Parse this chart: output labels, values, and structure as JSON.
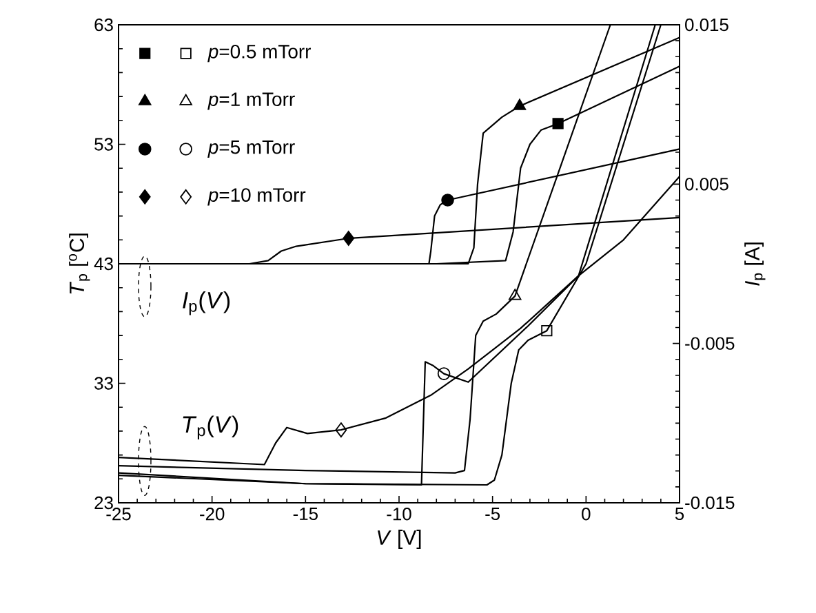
{
  "chart_data": {
    "type": "line",
    "xlabel": "*V* [V]",
    "ylabel": "*T*$_{p}$ [$^{o}$C]",
    "y2label": "*I*$_{p}$ [A]",
    "xlim": [
      -25,
      5
    ],
    "xticks": [
      -25,
      -20,
      -15,
      -10,
      -5,
      0,
      5
    ],
    "ylim": [
      23,
      63
    ],
    "yticks": [
      23,
      33,
      43,
      53,
      63
    ],
    "y2lim": [
      -0.015,
      0.015
    ],
    "y2ticks": [
      -0.015,
      -0.005,
      0.005,
      0.015
    ],
    "legend": "top left",
    "marker": "none",
    "line_style": "solid",
    "annotations": [
      "*I*$_{p}$(*V*)",
      "*T*$_{p}$(*V*)"
    ],
    "series": [
      {
        "axis": "y2",
        "color": "#000000",
        "x": [
          -25,
          -15,
          -8,
          -4.3,
          -3.9,
          -3.5,
          -3.0,
          -2.4,
          -1.5,
          5
        ],
        "values": [
          0,
          0,
          0,
          0.0002,
          0.002,
          0.006,
          0.0075,
          0.0084,
          0.0088,
          0.0124
        ]
      },
      {
        "axis": "y2",
        "color": "#000000",
        "x": [
          -25,
          -15,
          -6.3,
          -6.0,
          -5.8,
          -5.5,
          -4.5,
          -3.55,
          5
        ],
        "values": [
          0,
          0,
          0,
          0.001,
          0.005,
          0.0082,
          0.0092,
          0.0099,
          0.0142
        ]
      },
      {
        "axis": "y2",
        "color": "#000000",
        "x": [
          -25,
          -15,
          -8.4,
          -8.3,
          -8.1,
          -7.8,
          -7.4,
          5
        ],
        "values": [
          0,
          0,
          0,
          0.0008,
          0.003,
          0.0037,
          0.004,
          0.0072
        ]
      },
      {
        "axis": "y2",
        "color": "#000000",
        "x": [
          -25,
          -18,
          -17,
          -16.3,
          -15.5,
          -12.7,
          5
        ],
        "values": [
          0,
          0,
          0.0002,
          0.0008,
          0.0011,
          0.0016,
          0.0029
        ]
      },
      {
        "axis": "y",
        "color": "#000000",
        "x": [
          -25,
          -15,
          -5.3,
          -4.9,
          -4.5,
          -4.0,
          -3.6,
          -3.1,
          -2.1,
          0,
          4.0
        ],
        "values": [
          25.3,
          24.6,
          24.5,
          24.9,
          27,
          33,
          35.8,
          36.6,
          37.4,
          43,
          63
        ]
      },
      {
        "axis": "y",
        "color": "#000000",
        "x": [
          -25,
          -15,
          -7,
          -6.5,
          -6.2,
          -5.9,
          -5.5,
          -4.8,
          -3.8,
          1.3
        ],
        "values": [
          26.1,
          25.7,
          25.5,
          25.7,
          30,
          37,
          38.2,
          38.8,
          40.3,
          63
        ]
      },
      {
        "axis": "y",
        "color": "#000000",
        "x": [
          -25,
          -15,
          -8.8,
          -8.6,
          -8.2,
          -7.6,
          -6.3,
          -3.1,
          -0.4,
          3.7
        ],
        "values": [
          25.5,
          24.6,
          24.5,
          34.8,
          34.5,
          33.8,
          33.1,
          37.8,
          42,
          63
        ]
      },
      {
        "axis": "y",
        "color": "#000000",
        "x": [
          -25,
          -17.2,
          -16.6,
          -16.0,
          -14.9,
          -13.1,
          -10.7,
          -8.3,
          -6.3,
          -3.5,
          -0.4,
          2,
          5
        ],
        "values": [
          26.8,
          26.2,
          28,
          29.3,
          28.8,
          29.1,
          30.1,
          32.0,
          34.2,
          37.6,
          42,
          45,
          50.3
        ]
      },
      {
        "type": "scatter",
        "axis": "y2",
        "marker": "square",
        "color": "#000000",
        "x": [
          -1.5
        ],
        "values": [
          0.0088
        ]
      },
      {
        "type": "scatter",
        "axis": "y2",
        "marker": "triangle",
        "color": "#000000",
        "x": [
          -3.55
        ],
        "values": [
          0.0099
        ]
      },
      {
        "type": "scatter",
        "axis": "y2",
        "marker": "circle",
        "color": "#000000",
        "x": [
          -7.4
        ],
        "values": [
          0.004
        ]
      },
      {
        "type": "scatter",
        "axis": "y2",
        "marker": "diamond",
        "color": "#000000",
        "x": [
          -12.7
        ],
        "values": [
          0.0016
        ]
      },
      {
        "type": "scatter",
        "axis": "y",
        "name": "*p*=0.5 mTorr",
        "marker": "square",
        "color": "#000000",
        "x": [
          -2.1
        ],
        "values": [
          37.4
        ]
      },
      {
        "type": "scatter",
        "axis": "y",
        "name": "*p*=1 mTorr",
        "marker": "triangle",
        "color": "#000000",
        "x": [
          -3.8
        ],
        "values": [
          40.3
        ]
      },
      {
        "type": "scatter",
        "axis": "y",
        "name": "*p*=5 mTorr",
        "marker": "circle",
        "color": "#000000",
        "x": [
          -7.6
        ],
        "values": [
          33.8
        ]
      },
      {
        "type": "scatter",
        "axis": "y",
        "name": "*p*=10 mTorr",
        "marker": "diamond",
        "color": "#000000",
        "x": [
          -13.1
        ],
        "values": [
          29.1
        ]
      }
    ]
  }
}
